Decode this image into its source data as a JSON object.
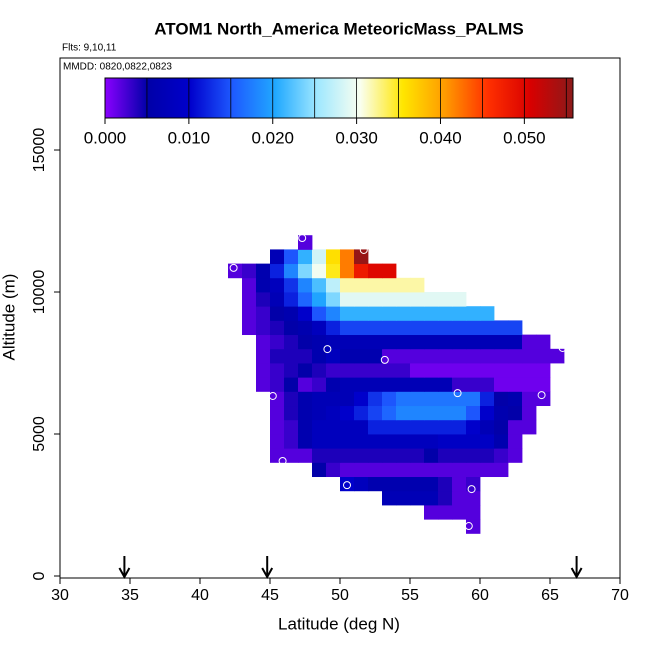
{
  "chart_data": {
    "type": "heatmap",
    "title": "ATOM1 North_America MeteoricMass_PALMS",
    "annotations": [
      "Flts: 9,10,11",
      "MMDD: 0820,0822,0823"
    ],
    "xlabel": "Latitude (deg N)",
    "ylabel": "Altitude (m)",
    "xlim": [
      30,
      70
    ],
    "xticks": [
      30,
      35,
      40,
      45,
      50,
      55,
      60,
      65,
      70
    ],
    "ylim": [
      -70,
      18240
    ],
    "yticks": [
      0,
      5000,
      10000,
      15000
    ],
    "x_edges": [
      42,
      43,
      44,
      45,
      46,
      47,
      48,
      49,
      50,
      51,
      52,
      53,
      54,
      55,
      56,
      57,
      58,
      59,
      60,
      61,
      62,
      63,
      64,
      65,
      66,
      67
    ],
    "y_edges": [
      1500,
      2000,
      2500,
      3000,
      3500,
      4000,
      4500,
      5000,
      5500,
      6000,
      6500,
      7000,
      7500,
      8000,
      8500,
      9000,
      9500,
      10000,
      10500,
      11000,
      11500,
      12000
    ],
    "z": [
      [
        null,
        null,
        null,
        null,
        null,
        null,
        null,
        null,
        null,
        null,
        null,
        null,
        null,
        null,
        null,
        null,
        null,
        0.002,
        null,
        null,
        null,
        null,
        null,
        null,
        null
      ],
      [
        null,
        null,
        null,
        null,
        null,
        null,
        null,
        null,
        null,
        null,
        null,
        null,
        null,
        null,
        0.002,
        0.002,
        0.002,
        0.002,
        null,
        null,
        null,
        null,
        null,
        null,
        null
      ],
      [
        null,
        null,
        null,
        null,
        null,
        null,
        null,
        null,
        null,
        null,
        null,
        0.007,
        0.007,
        0.007,
        0.007,
        0.004,
        0.002,
        0.002,
        null,
        null,
        null,
        null,
        null,
        null,
        null
      ],
      [
        null,
        null,
        null,
        null,
        null,
        null,
        null,
        null,
        0.01,
        0.008,
        0.006,
        0.006,
        0.006,
        0.006,
        0.006,
        0.004,
        0.002,
        0.003,
        null,
        null,
        null,
        null,
        null,
        null,
        null
      ],
      [
        null,
        null,
        null,
        null,
        null,
        null,
        0.005,
        0.003,
        0.002,
        0.002,
        0.002,
        0.002,
        0.002,
        0.002,
        0.002,
        0.002,
        0.002,
        0.002,
        0.002,
        0.002,
        null,
        null,
        null,
        null,
        null
      ],
      [
        null,
        null,
        null,
        0.002,
        0.002,
        0.002,
        0.004,
        0.004,
        0.004,
        0.004,
        0.004,
        0.004,
        0.004,
        0.004,
        0.005,
        0.004,
        0.004,
        0.004,
        0.004,
        0.003,
        0.002,
        null,
        null,
        null,
        null
      ],
      [
        null,
        null,
        null,
        0.002,
        0.003,
        0.006,
        0.008,
        0.008,
        0.008,
        0.008,
        0.008,
        0.008,
        0.008,
        0.008,
        0.008,
        0.009,
        0.009,
        0.009,
        0.009,
        0.006,
        0.002,
        null,
        null,
        null,
        null
      ],
      [
        null,
        null,
        null,
        0.002,
        0.003,
        0.006,
        0.008,
        0.008,
        0.008,
        0.008,
        0.012,
        0.012,
        0.012,
        0.012,
        0.012,
        0.012,
        0.012,
        0.01,
        0.007,
        0.005,
        0.002,
        0.002,
        null,
        null,
        null
      ],
      [
        null,
        null,
        null,
        0.002,
        0.004,
        0.006,
        0.007,
        0.008,
        0.01,
        0.012,
        0.014,
        0.016,
        0.018,
        0.018,
        0.018,
        0.018,
        0.018,
        0.015,
        0.01,
        0.006,
        0.005,
        0.002,
        null,
        null,
        null
      ],
      [
        null,
        null,
        null,
        0.002,
        0.004,
        0.006,
        0.007,
        0.007,
        0.007,
        0.01,
        0.013,
        0.015,
        0.017,
        0.017,
        0.017,
        0.017,
        0.017,
        0.017,
        0.012,
        0.005,
        0.006,
        0.002,
        0.002,
        null,
        null
      ],
      [
        null,
        null,
        0.002,
        0.003,
        0.005,
        0.002,
        0.003,
        0.006,
        0.007,
        0.007,
        0.007,
        0.007,
        0.007,
        0.007,
        0.007,
        0.007,
        0.003,
        0.003,
        0.003,
        0.001,
        0.001,
        0.001,
        0.001,
        null,
        null
      ],
      [
        null,
        null,
        0.002,
        0.003,
        0.004,
        0.005,
        0.004,
        0.003,
        0.003,
        0.003,
        0.003,
        0.003,
        0.003,
        0.001,
        0.001,
        0.001,
        0.001,
        0.001,
        0.001,
        0.001,
        0.001,
        0.001,
        0.001,
        null,
        null
      ],
      [
        null,
        null,
        0.002,
        0.004,
        0.004,
        0.004,
        0.006,
        0.008,
        0.006,
        0.006,
        0.006,
        0.002,
        0.002,
        0.002,
        0.002,
        0.002,
        0.002,
        0.002,
        0.002,
        0.002,
        0.002,
        0.002,
        0.002,
        0.002,
        null
      ],
      [
        null,
        null,
        0.002,
        0.003,
        0.004,
        0.005,
        0.006,
        0.007,
        0.007,
        0.007,
        0.007,
        0.007,
        0.007,
        0.007,
        0.007,
        0.007,
        0.007,
        0.007,
        0.007,
        0.007,
        0.007,
        0.002,
        0.002,
        null,
        null
      ],
      [
        null,
        0.002,
        0.003,
        0.004,
        0.005,
        0.006,
        0.008,
        0.012,
        0.014,
        0.014,
        0.014,
        0.014,
        0.014,
        0.014,
        0.014,
        0.014,
        0.014,
        0.014,
        0.014,
        0.014,
        0.014,
        null,
        null,
        null,
        null
      ],
      [
        null,
        0.002,
        0.003,
        0.005,
        0.006,
        0.01,
        0.015,
        0.018,
        0.021,
        0.021,
        0.021,
        0.021,
        0.021,
        0.021,
        0.021,
        0.021,
        0.021,
        0.021,
        0.021,
        null,
        null,
        null,
        null,
        null,
        null
      ],
      [
        null,
        0.002,
        0.004,
        0.007,
        0.012,
        0.016,
        0.02,
        0.024,
        0.029,
        0.029,
        0.029,
        0.029,
        0.029,
        0.029,
        0.029,
        0.029,
        0.029,
        null,
        null,
        null,
        null,
        null,
        null,
        null,
        null
      ],
      [
        null,
        0.002,
        0.006,
        0.008,
        0.013,
        0.018,
        0.022,
        0.027,
        0.032,
        0.032,
        0.032,
        0.032,
        0.032,
        0.032,
        null,
        null,
        null,
        null,
        null,
        null,
        null,
        null,
        null,
        null,
        null
      ],
      [
        0.002,
        0.003,
        0.006,
        0.012,
        0.018,
        0.024,
        0.03,
        0.035,
        0.042,
        0.048,
        0.05,
        0.05,
        null,
        null,
        null,
        null,
        null,
        null,
        null,
        null,
        null,
        null,
        null,
        null,
        null
      ],
      [
        null,
        null,
        null,
        0.007,
        0.015,
        0.021,
        0.028,
        0.036,
        0.042,
        0.055,
        null,
        null,
        null,
        null,
        null,
        null,
        null,
        null,
        null,
        null,
        null,
        null,
        null,
        null,
        null
      ],
      [
        null,
        null,
        null,
        null,
        null,
        0.002,
        null,
        null,
        null,
        null,
        null,
        null,
        null,
        null,
        null,
        null,
        null,
        null,
        null,
        null,
        null,
        null,
        null,
        null,
        null
      ]
    ],
    "colormap": [
      "#8a00ff",
      "#0000a8",
      "#0000cc",
      "#1e5aff",
      "#20a8ff",
      "#a0e8ff",
      "#fafff0",
      "#ffe600",
      "#ff9a00",
      "#ff3000",
      "#d80000",
      "#8b1a1a"
    ],
    "colorbar_lim": [
      0,
      0.0558
    ],
    "colorbar_ticks": [
      {
        "value": 0,
        "label": "0.000"
      },
      {
        "value": 0.01,
        "label": "0.010"
      },
      {
        "value": 0.02,
        "label": "0.020"
      },
      {
        "value": 0.03,
        "label": "0.030"
      },
      {
        "value": 0.04,
        "label": "0.040"
      },
      {
        "value": 0.05,
        "label": "0.050"
      }
    ],
    "colorbar_lines": [
      0.005,
      0.01,
      0.015,
      0.02,
      0.025,
      0.03,
      0.035,
      0.04,
      0.045,
      0.05,
      0.055
    ],
    "points": {
      "color": "#ffffff",
      "x": [
        42.4,
        47.3,
        51.7,
        49.1,
        53.2,
        65.9,
        45.2,
        58.4,
        64.4,
        45.9,
        50.5,
        59.4,
        59.2
      ],
      "y": [
        10850,
        11900,
        11480,
        7990,
        7610,
        8030,
        6340,
        6440,
        6370,
        4050,
        3200,
        3060,
        1760
      ]
    },
    "arrows": [
      34.6,
      44.8,
      66.9
    ]
  }
}
